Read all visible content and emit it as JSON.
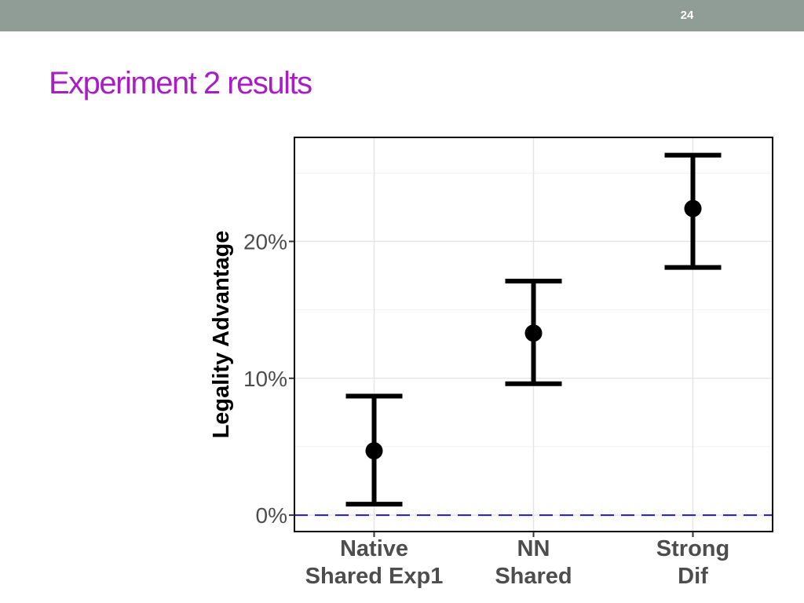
{
  "slide": {
    "number": "24",
    "title": "Experiment 2 results",
    "header_bar_color": "#909c96",
    "title_color": "#a81ec4"
  },
  "chart_data": {
    "type": "pointrange",
    "title": "",
    "xlabel": "",
    "ylabel": "Legality Advantage",
    "categories": [
      [
        "Native",
        "Shared Exp1"
      ],
      [
        "NN",
        "Shared"
      ],
      [
        "Strong",
        "Dif"
      ]
    ],
    "points": [
      {
        "estimate": 4.7,
        "lower": 0.8,
        "upper": 8.7
      },
      {
        "estimate": 13.3,
        "lower": 9.6,
        "upper": 17.1
      },
      {
        "estimate": 22.4,
        "lower": 18.1,
        "upper": 26.3
      }
    ],
    "yticks": [
      0,
      10,
      20
    ],
    "ytick_labels": [
      "0%",
      "10%",
      "20%"
    ],
    "ylim": [
      -1.2,
      27.6
    ],
    "reference_line": {
      "y": 0,
      "style": "dashed",
      "color": "#1a1acc"
    },
    "grid": true,
    "legend": "none",
    "mark_color": "#000000"
  }
}
